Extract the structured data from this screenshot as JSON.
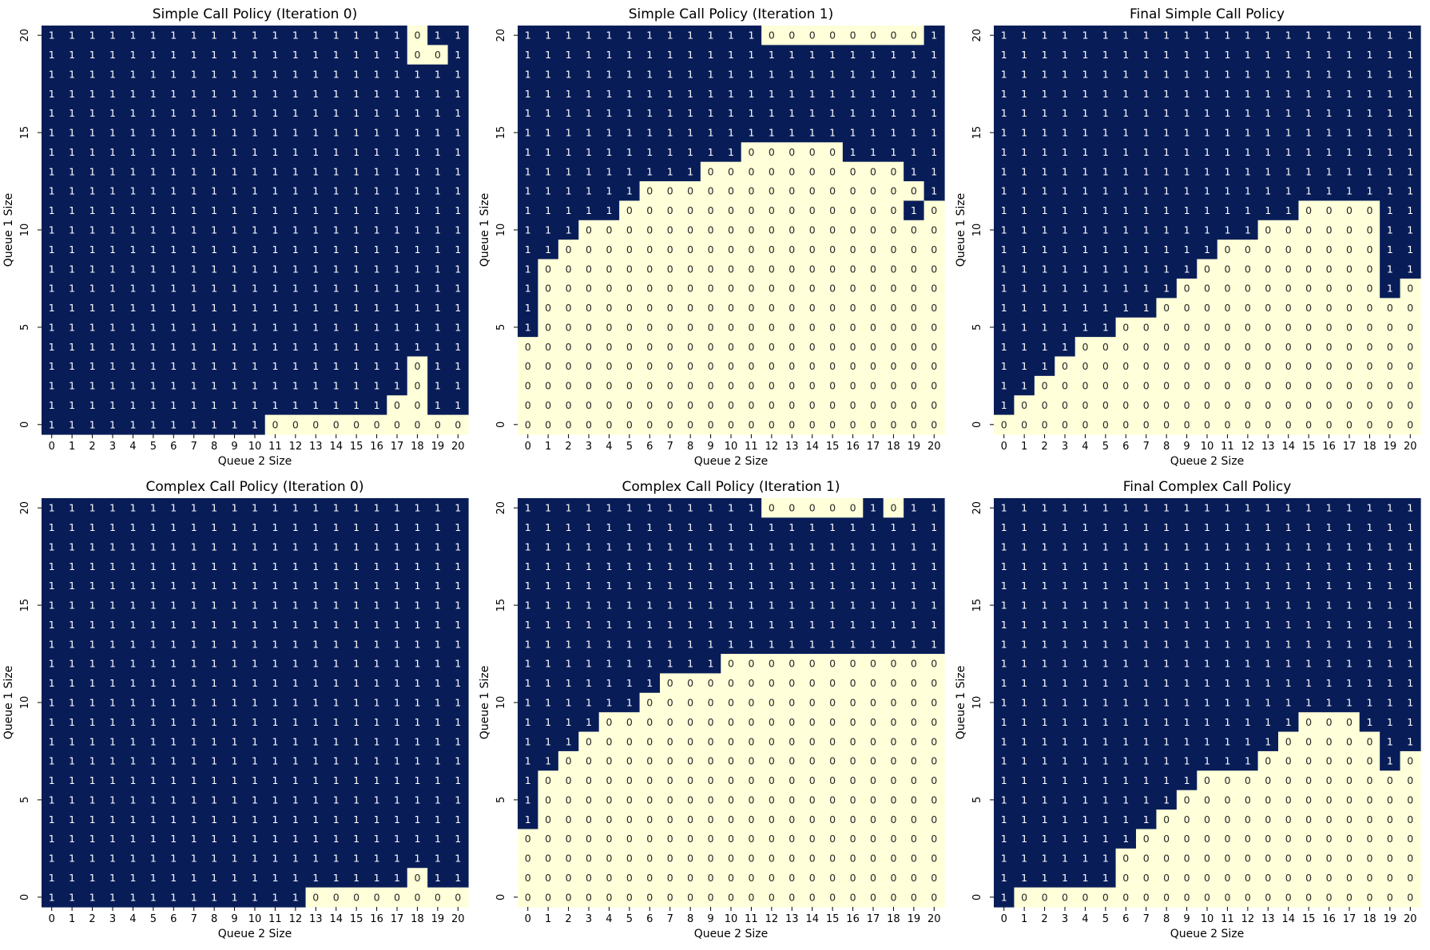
{
  "colors": {
    "one": "#081d58",
    "zero": "#ffffd9",
    "label_on_one": "#ffffff",
    "label_on_zero": "#262626"
  },
  "chart_data": [
    {
      "type": "heatmap",
      "title": "Simple Call Policy (Iteration 0)",
      "xlabel": "Queue 2 Size",
      "ylabel": "Queue 1 Size",
      "x_ticks": [
        "0",
        "1",
        "2",
        "3",
        "4",
        "5",
        "6",
        "7",
        "8",
        "9",
        "10",
        "11",
        "12",
        "13",
        "14",
        "15",
        "16",
        "17",
        "18",
        "19",
        "20"
      ],
      "y_ticks": [
        "20",
        "15",
        "10",
        "5",
        "0"
      ],
      "row_order": "top row = Queue 1 Size 20, bottom row = Queue 1 Size 0; columns = Queue 2 Size 0..20",
      "grid": [
        "111111111111111111011",
        "111111111111111111001",
        "111111111111111111111",
        "111111111111111111111",
        "111111111111111111111",
        "111111111111111111111",
        "111111111111111111111",
        "111111111111111111111",
        "111111111111111111111",
        "111111111111111111111",
        "111111111111111111111",
        "111111111111111111111",
        "111111111111111111111",
        "111111111111111111111",
        "111111111111111111111",
        "111111111111111111111",
        "111111111111111111111",
        "111111111111111111011",
        "111111111111111111011",
        "111111111111111110011",
        "111111111110000000000"
      ]
    },
    {
      "type": "heatmap",
      "title": "Simple Call Policy (Iteration 1)",
      "xlabel": "Queue 2 Size",
      "ylabel": "Queue 1 Size",
      "x_ticks": [
        "0",
        "1",
        "2",
        "3",
        "4",
        "5",
        "6",
        "7",
        "8",
        "9",
        "10",
        "11",
        "12",
        "13",
        "14",
        "15",
        "16",
        "17",
        "18",
        "19",
        "20"
      ],
      "y_ticks": [
        "20",
        "15",
        "10",
        "5",
        "0"
      ],
      "row_order": "top row = Queue 1 Size 20, bottom row = Queue 1 Size 0; columns = Queue 2 Size 0..20",
      "grid": [
        "111111111111000000001",
        "111111111111111111111",
        "111111111111111111111",
        "111111111111111111111",
        "111111111111111111111",
        "111111111111111111111",
        "111111111110000011111",
        "111111111000000000011",
        "111111000000000000001",
        "111110000000000000010",
        "111000000000000000000",
        "110000000000000000000",
        "100000000000000000000",
        "100000000000000000000",
        "100000000000000000000",
        "100000000000000000000",
        "000000000000000000000",
        "000000000000000000000",
        "000000000000000000000",
        "000000000000000000000",
        "000000000000000000000"
      ]
    },
    {
      "type": "heatmap",
      "title": "Final Simple Call Policy",
      "xlabel": "Queue 2 Size",
      "ylabel": "Queue 1 Size",
      "x_ticks": [
        "0",
        "1",
        "2",
        "3",
        "4",
        "5",
        "6",
        "7",
        "8",
        "9",
        "10",
        "11",
        "12",
        "13",
        "14",
        "15",
        "16",
        "17",
        "18",
        "19",
        "20"
      ],
      "y_ticks": [
        "20",
        "15",
        "10",
        "5",
        "0"
      ],
      "row_order": "top row = Queue 1 Size 20, bottom row = Queue 1 Size 0; columns = Queue 2 Size 0..20",
      "grid": [
        "111111111111111111111",
        "111111111111111111111",
        "111111111111111111111",
        "111111111111111111111",
        "111111111111111111111",
        "111111111111111111111",
        "111111111111111111111",
        "111111111111111111111",
        "111111111111111111111",
        "111111111111111000011",
        "111111111111100000011",
        "111111111110000000011",
        "111111111100000000011",
        "111111111000000000010",
        "111111110000000000000",
        "111111000000000000000",
        "111100000000000000000",
        "111000000000000000000",
        "110000000000000000000",
        "100000000000000000000",
        "000000000000000000000"
      ]
    },
    {
      "type": "heatmap",
      "title": "Complex Call Policy (Iteration 0)",
      "xlabel": "Queue 2 Size",
      "ylabel": "Queue 1 Size",
      "x_ticks": [
        "0",
        "1",
        "2",
        "3",
        "4",
        "5",
        "6",
        "7",
        "8",
        "9",
        "10",
        "11",
        "12",
        "13",
        "14",
        "15",
        "16",
        "17",
        "18",
        "19",
        "20"
      ],
      "y_ticks": [
        "20",
        "15",
        "10",
        "5",
        "0"
      ],
      "row_order": "top row = Queue 1 Size 20, bottom row = Queue 1 Size 0; columns = Queue 2 Size 0..20",
      "grid": [
        "111111111111111111111",
        "111111111111111111111",
        "111111111111111111111",
        "111111111111111111111",
        "111111111111111111111",
        "111111111111111111111",
        "111111111111111111111",
        "111111111111111111111",
        "111111111111111111111",
        "111111111111111111111",
        "111111111111111111111",
        "111111111111111111111",
        "111111111111111111111",
        "111111111111111111111",
        "111111111111111111111",
        "111111111111111111111",
        "111111111111111111111",
        "111111111111111111111",
        "111111111111111111111",
        "111111111111111111011",
        "111111111111100000000"
      ]
    },
    {
      "type": "heatmap",
      "title": "Complex Call Policy (Iteration 1)",
      "xlabel": "Queue 2 Size",
      "ylabel": "Queue 1 Size",
      "x_ticks": [
        "0",
        "1",
        "2",
        "3",
        "4",
        "5",
        "6",
        "7",
        "8",
        "9",
        "10",
        "11",
        "12",
        "13",
        "14",
        "15",
        "16",
        "17",
        "18",
        "19",
        "20"
      ],
      "y_ticks": [
        "20",
        "15",
        "10",
        "5",
        "0"
      ],
      "row_order": "top row = Queue 1 Size 20, bottom row = Queue 1 Size 0; columns = Queue 2 Size 0..20",
      "grid": [
        "111111111111000001011",
        "111111111111111111111",
        "111111111111111111111",
        "111111111111111111111",
        "111111111111111111111",
        "111111111111111111111",
        "111111111111111111111",
        "111111111111111111111",
        "111111111100000000000",
        "111111100000000000000",
        "111111000000000000000",
        "111100000000000000000",
        "111000000000000000000",
        "110000000000000000000",
        "100000000000000000000",
        "100000000000000000000",
        "100000000000000000000",
        "000000000000000000000",
        "000000000000000000000",
        "000000000000000000000",
        "000000000000000000000"
      ]
    },
    {
      "type": "heatmap",
      "title": "Final Complex Call Policy",
      "xlabel": "Queue 2 Size",
      "ylabel": "Queue 1 Size",
      "x_ticks": [
        "0",
        "1",
        "2",
        "3",
        "4",
        "5",
        "6",
        "7",
        "8",
        "9",
        "10",
        "11",
        "12",
        "13",
        "14",
        "15",
        "16",
        "17",
        "18",
        "19",
        "20"
      ],
      "y_ticks": [
        "20",
        "15",
        "10",
        "5",
        "0"
      ],
      "row_order": "top row = Queue 1 Size 20, bottom row = Queue 1 Size 0; columns = Queue 2 Size 0..20",
      "grid": [
        "111111111111111111111",
        "111111111111111111111",
        "111111111111111111111",
        "111111111111111111111",
        "111111111111111111111",
        "111111111111111111111",
        "111111111111111111111",
        "111111111111111111111",
        "111111111111111111111",
        "111111111111111111111",
        "111111111111111111111",
        "111111111111111000111",
        "111111111111110000011",
        "111111111111100000010",
        "111111111100000000000",
        "111111111000000000000",
        "111111110000000000000",
        "111111100000000000000",
        "111111000000000000000",
        "111111000000000000000",
        "100000000000000000000"
      ]
    }
  ]
}
